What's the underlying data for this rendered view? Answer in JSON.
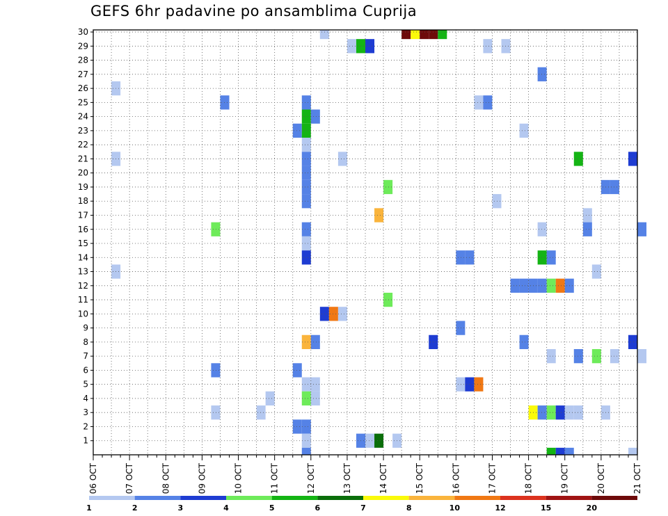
{
  "chart_data": {
    "type": "heatmap",
    "title": "GEFS 6hr padavine po ansamblima Cuprija",
    "x_unit": "6-hour step",
    "x_range": [
      0,
      60
    ],
    "y_range": [
      0,
      30
    ],
    "grid": true,
    "y_ticks": [
      1,
      2,
      3,
      4,
      5,
      6,
      7,
      8,
      9,
      10,
      11,
      12,
      13,
      14,
      15,
      16,
      17,
      18,
      19,
      20,
      21,
      22,
      23,
      24,
      25,
      26,
      27,
      28,
      29,
      30
    ],
    "x_ticks": [
      {
        "pos": 0,
        "label": "06 OCT"
      },
      {
        "pos": 4,
        "label": "07 OCT"
      },
      {
        "pos": 8,
        "label": "08 OCT"
      },
      {
        "pos": 12,
        "label": "09 OCT"
      },
      {
        "pos": 16,
        "label": "10 OCT"
      },
      {
        "pos": 20,
        "label": "11 OCT"
      },
      {
        "pos": 24,
        "label": "12 OCT"
      },
      {
        "pos": 28,
        "label": "13 OCT"
      },
      {
        "pos": 32,
        "label": "14 OCT"
      },
      {
        "pos": 36,
        "label": "15 OCT"
      },
      {
        "pos": 40,
        "label": "16 OCT"
      },
      {
        "pos": 44,
        "label": "17 OCT"
      },
      {
        "pos": 48,
        "label": "18 OCT"
      },
      {
        "pos": 52,
        "label": "19 OCT"
      },
      {
        "pos": 56,
        "label": "20 OCT"
      },
      {
        "pos": 60,
        "label": "21 OCT"
      }
    ],
    "colorbar": {
      "labels": [
        "1",
        "2",
        "3",
        "4",
        "5",
        "6",
        "7",
        "8",
        "10",
        "12",
        "15",
        "20"
      ],
      "colors": [
        "#b4c8f0",
        "#5582e6",
        "#1e3cd2",
        "#6eeb5a",
        "#14b414",
        "#0a6e0a",
        "#fafa0a",
        "#fab43c",
        "#f07814",
        "#dc321e",
        "#a01414",
        "#6e0a0a"
      ]
    },
    "cells": [
      [
        25,
        30,
        1
      ],
      [
        28,
        29,
        1
      ],
      [
        29,
        29,
        5
      ],
      [
        30,
        29,
        3
      ],
      [
        43,
        29,
        1
      ],
      [
        45,
        29,
        1
      ],
      [
        34,
        30,
        12
      ],
      [
        35,
        30,
        7
      ],
      [
        36,
        30,
        12
      ],
      [
        37,
        30,
        12
      ],
      [
        38,
        30,
        5
      ],
      [
        49,
        27,
        2
      ],
      [
        2,
        26,
        1
      ],
      [
        14,
        25,
        2
      ],
      [
        23,
        25,
        2
      ],
      [
        42,
        25,
        1
      ],
      [
        43,
        25,
        2
      ],
      [
        23,
        24,
        5
      ],
      [
        24,
        24,
        2
      ],
      [
        22,
        23,
        2
      ],
      [
        23,
        23,
        5
      ],
      [
        47,
        23,
        1
      ],
      [
        23,
        22,
        1
      ],
      [
        2,
        21,
        1
      ],
      [
        23,
        21,
        2
      ],
      [
        27,
        21,
        1
      ],
      [
        53,
        21,
        5
      ],
      [
        59,
        21,
        3
      ],
      [
        23,
        20,
        2
      ],
      [
        23,
        19,
        2
      ],
      [
        32,
        19,
        4
      ],
      [
        56,
        19,
        2
      ],
      [
        57,
        19,
        2
      ],
      [
        23,
        18,
        2
      ],
      [
        44,
        18,
        1
      ],
      [
        31,
        17,
        8
      ],
      [
        54,
        17,
        1
      ],
      [
        13,
        16,
        4
      ],
      [
        23,
        16,
        2
      ],
      [
        49,
        16,
        1
      ],
      [
        54,
        16,
        2
      ],
      [
        60,
        16,
        2
      ],
      [
        23,
        15,
        1
      ],
      [
        23,
        14,
        3
      ],
      [
        40,
        14,
        2
      ],
      [
        41,
        14,
        2
      ],
      [
        49,
        14,
        5
      ],
      [
        50,
        14,
        2
      ],
      [
        2,
        13,
        1
      ],
      [
        55,
        13,
        1
      ],
      [
        46,
        12,
        2
      ],
      [
        47,
        12,
        2
      ],
      [
        48,
        12,
        2
      ],
      [
        49,
        12,
        2
      ],
      [
        50,
        12,
        4
      ],
      [
        51,
        12,
        9
      ],
      [
        52,
        12,
        2
      ],
      [
        32,
        11,
        4
      ],
      [
        25,
        10,
        3
      ],
      [
        26,
        10,
        9
      ],
      [
        27,
        10,
        1
      ],
      [
        40,
        9,
        2
      ],
      [
        23,
        8,
        8
      ],
      [
        24,
        8,
        2
      ],
      [
        37,
        8,
        3
      ],
      [
        47,
        8,
        2
      ],
      [
        59,
        8,
        3
      ],
      [
        50,
        7,
        1
      ],
      [
        53,
        7,
        2
      ],
      [
        55,
        7,
        4
      ],
      [
        57,
        7,
        1
      ],
      [
        60,
        7,
        1
      ],
      [
        13,
        6,
        2
      ],
      [
        22,
        6,
        2
      ],
      [
        23,
        5,
        1
      ],
      [
        24,
        5,
        1
      ],
      [
        40,
        5,
        1
      ],
      [
        41,
        5,
        3
      ],
      [
        42,
        5,
        9
      ],
      [
        19,
        4,
        1
      ],
      [
        23,
        4,
        4
      ],
      [
        24,
        4,
        1
      ],
      [
        13,
        3,
        1
      ],
      [
        18,
        3,
        1
      ],
      [
        48,
        3,
        7
      ],
      [
        49,
        3,
        2
      ],
      [
        50,
        3,
        4
      ],
      [
        51,
        3,
        3
      ],
      [
        52,
        3,
        1
      ],
      [
        53,
        3,
        1
      ],
      [
        56,
        3,
        1
      ],
      [
        22,
        2,
        2
      ],
      [
        23,
        2,
        2
      ],
      [
        23,
        1,
        1
      ],
      [
        29,
        1,
        2
      ],
      [
        30,
        1,
        1
      ],
      [
        31,
        1,
        6
      ],
      [
        33,
        1,
        1
      ],
      [
        23,
        0,
        2
      ],
      [
        50,
        0,
        5
      ],
      [
        51,
        0,
        3
      ],
      [
        52,
        0,
        2
      ],
      [
        59,
        0,
        1
      ]
    ]
  }
}
